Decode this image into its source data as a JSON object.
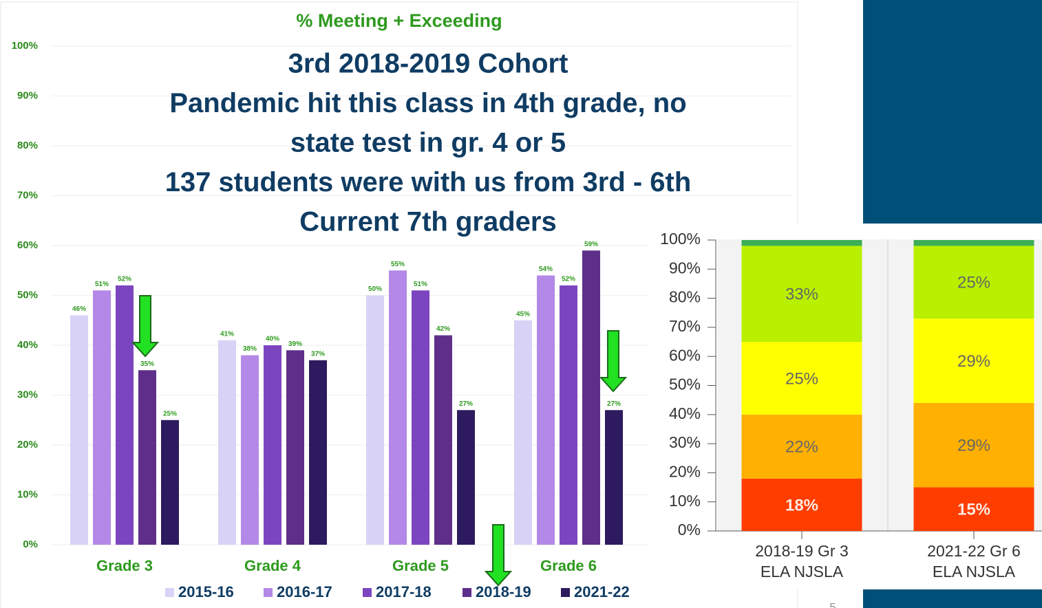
{
  "chart_data": [
    {
      "type": "bar",
      "title": "% Meeting + Exceeding",
      "categories": [
        "Grade 3",
        "Grade 4",
        "Grade 5",
        "Grade 6"
      ],
      "series": [
        {
          "name": "2015-16",
          "color": "#d9d2f7",
          "values": [
            46,
            41,
            50,
            45
          ],
          "value_labels": [
            "46%",
            "41%",
            "50%",
            "45%"
          ]
        },
        {
          "name": "2016-17",
          "color": "#b388e6",
          "values": [
            51,
            38,
            55,
            54
          ],
          "value_labels": [
            "51%",
            "38%",
            "55%",
            "54%"
          ]
        },
        {
          "name": "2017-18",
          "color": "#7c45c0",
          "values": [
            52,
            40,
            51,
            52
          ],
          "value_labels": [
            "52%",
            "40%",
            "51%",
            "52%"
          ]
        },
        {
          "name": "2018-19",
          "color": "#5e2f8a",
          "values": [
            35,
            39,
            42,
            59
          ],
          "value_labels": [
            "35%",
            "39%",
            "42%",
            "59%"
          ]
        },
        {
          "name": "2021-22",
          "color": "#2e1a5e",
          "values": [
            25,
            37,
            27,
            27
          ],
          "value_labels": [
            "25%",
            "37%",
            "27%",
            "27%"
          ]
        }
      ],
      "ylim": [
        0,
        100
      ],
      "yticks": [
        {
          "value": 0,
          "label": "0%"
        },
        {
          "value": 10,
          "label": "10%"
        },
        {
          "value": 20,
          "label": "20%"
        },
        {
          "value": 30,
          "label": "30%"
        },
        {
          "value": 40,
          "label": "40%"
        },
        {
          "value": 50,
          "label": "50%"
        },
        {
          "value": 60,
          "label": "60%"
        },
        {
          "value": 70,
          "label": "70%"
        },
        {
          "value": 80,
          "label": "80%"
        },
        {
          "value": 90,
          "label": "90%"
        },
        {
          "value": 100,
          "label": "100%"
        }
      ],
      "grid": true,
      "legend": "bottom",
      "annotations": [
        "3rd 2018-2019 Cohort",
        "Pandemic hit this class in 4th grade, no",
        "state test in gr. 4 or 5",
        "137 students were with us from 3rd - 6th",
        "Current 7th graders"
      ]
    },
    {
      "type": "stacked_bar",
      "categories": [
        [
          "2018-19 Gr 3",
          "ELA NJSLA"
        ],
        [
          "2021-22 Gr 6",
          "ELA NJSLA"
        ]
      ],
      "series": [
        {
          "color": "#ff3d00",
          "values": [
            18,
            15
          ],
          "value_labels": [
            "18%",
            "15%"
          ]
        },
        {
          "color": "#ffb000",
          "values": [
            22,
            29
          ],
          "value_labels": [
            "22%",
            "29%"
          ]
        },
        {
          "color": "#ffff00",
          "values": [
            25,
            29
          ],
          "value_labels": [
            "25%",
            "29%"
          ]
        },
        {
          "color": "#b8f000",
          "values": [
            33,
            25
          ],
          "value_labels": [
            "33%",
            "25%"
          ]
        },
        {
          "color": "#3cae55",
          "values": [
            2,
            2
          ]
        }
      ],
      "ylim": [
        0,
        100
      ],
      "yticks": [
        {
          "value": 0,
          "label": "0%"
        },
        {
          "value": 10,
          "label": "10%"
        },
        {
          "value": 20,
          "label": "20%"
        },
        {
          "value": 30,
          "label": "30%"
        },
        {
          "value": 40,
          "label": "40%"
        },
        {
          "value": 50,
          "label": "50%"
        },
        {
          "value": 60,
          "label": "60%"
        },
        {
          "value": 70,
          "label": "70%"
        },
        {
          "value": 80,
          "label": "80%"
        },
        {
          "value": 90,
          "label": "90%"
        },
        {
          "value": 100,
          "label": "100%"
        }
      ]
    }
  ],
  "page_number": "5"
}
